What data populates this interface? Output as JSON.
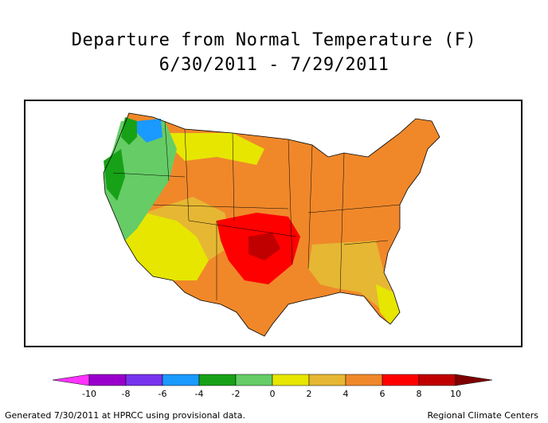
{
  "title_line1": "Departure from Normal Temperature (F)",
  "title_line2": "6/30/2011 - 7/29/2011",
  "legend": {
    "ticks": [
      "-10",
      "-8",
      "-6",
      "-4",
      "-2",
      "0",
      "2",
      "4",
      "6",
      "8",
      "10"
    ],
    "colors": [
      "#ff33ff",
      "#9900cc",
      "#7733ee",
      "#1a99ff",
      "#17a117",
      "#66cc66",
      "#e6e600",
      "#e6b733",
      "#f0882a",
      "#ff0000",
      "#c00000",
      "#800000"
    ]
  },
  "footer": {
    "left": "Generated 7/30/2011 at HPRCC using provisional data.",
    "right": "Regional Climate Centers"
  }
}
